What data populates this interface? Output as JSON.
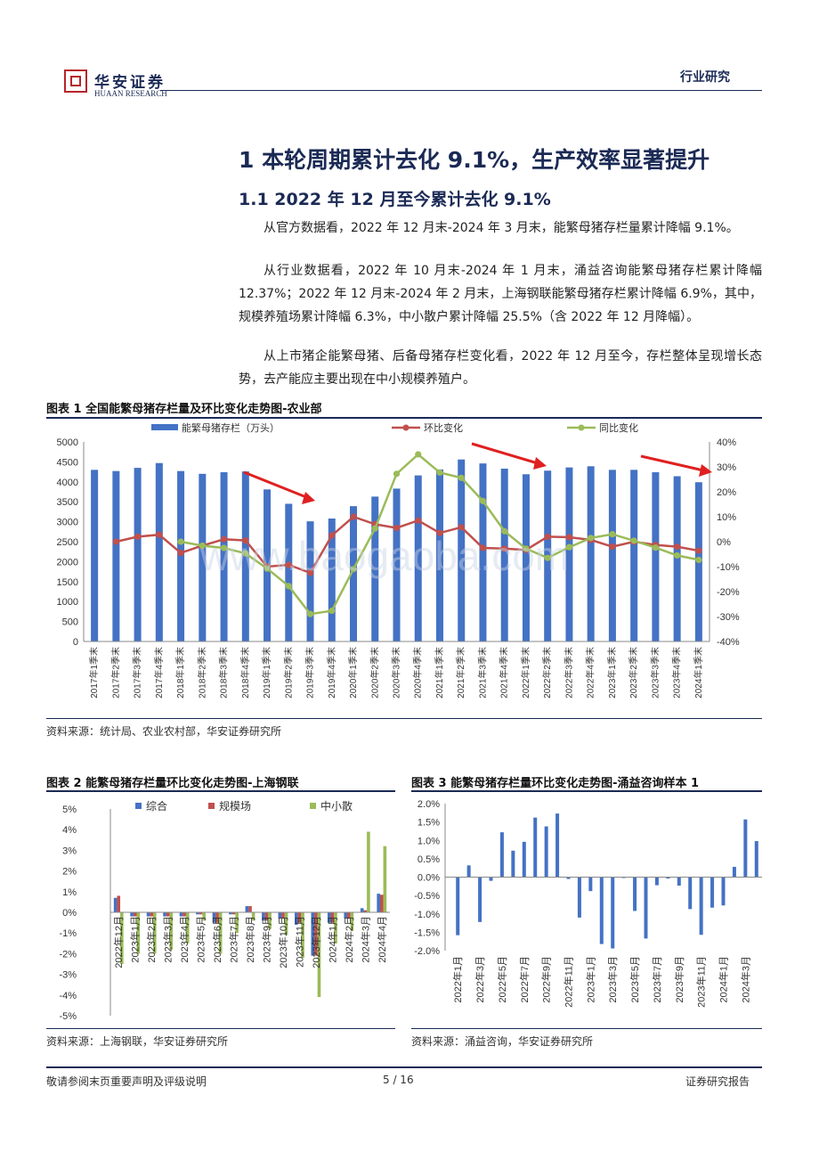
{
  "header": {
    "brand_cn": "华安证券",
    "brand_en": "HUAAN RESEARCH",
    "category": "行业研究"
  },
  "section_title": "1 本轮周期累计去化 9.1%，生产效率显著提升",
  "subsection_title": "1.1 2022 年 12 月至今累计去化 9.1%",
  "paragraphs": [
    "从官方数据看，2022 年 12 月末-2024 年 3 月末，能繁母猪存栏量累计降幅 9.1%。",
    "从行业数据看，2022 年 10 月末-2024 年 1 月末，涌益咨询能繁母猪存栏累计降幅 12.37%；2022 年 12 月末-2024 年 2 月末，上海钢联能繁母猪存栏累计降幅 6.9%，其中，规模养殖场累计降幅 6.3%，中小散户累计降幅 25.5%（含 2022 年 12 月降幅）。",
    "从上市猪企能繁母猪、后备母猪存栏变化看，2022 年 12 月至今，存栏整体呈现增长态势，去产能应主要出现在中小规模养殖户。"
  ],
  "figure1": {
    "title": "图表 1 全国能繁母猪存栏量及环比变化走势图-农业部",
    "source": "资料来源：统计局、农业农村部，华安证券研究所"
  },
  "figure2": {
    "title": "图表 2 能繁母猪存栏量环比变化走势图-上海钢联",
    "source": "资料来源：上海钢联，华安证券研究所"
  },
  "figure3": {
    "title": "图表 3 能繁母猪存栏量环比变化走势图-涌益咨询样本 1",
    "source": "资料来源：涌益咨询，华安证券研究所"
  },
  "watermark": "www.baogaoba.com",
  "footer": {
    "left": "敬请参阅末页重要声明及评级说明",
    "page": "5 / 16",
    "right": "证券研究报告"
  },
  "colors": {
    "navy": "#1b2a55",
    "bar_blue": "#4472c4",
    "mom_red": "#c0504d",
    "yoy_green": "#9bbb59",
    "arrow_red": "#e02020"
  },
  "chart_data": [
    {
      "id": "chart1",
      "type": "bar",
      "categories": [
        "2017年1季末",
        "2017年2季末",
        "2017年3季末",
        "2017年4季末",
        "2018年1季末",
        "2018年2季末",
        "2018年3季末",
        "2018年4季末",
        "2019年1季末",
        "2019年2季末",
        "2019年3季末",
        "2019年4季末",
        "2020年1季末",
        "2020年2季末",
        "2020年3季末",
        "2020年4季末",
        "2021年1季末",
        "2021年2季末",
        "2021年3季末",
        "2021年4季末",
        "2022年1季末",
        "2022年2季末",
        "2022年3季末",
        "2022年4季末",
        "2023年1季末",
        "2023年2季末",
        "2023年3季末",
        "2023年4季末",
        "2024年1季末"
      ],
      "series": [
        {
          "name": "能繁母猪存栏（万头）",
          "kind": "bar",
          "axis": "left",
          "values": [
            4300,
            4270,
            4350,
            4470,
            4270,
            4200,
            4240,
            4260,
            3810,
            3450,
            3010,
            3080,
            3390,
            3630,
            3830,
            4160,
            4310,
            4560,
            4460,
            4330,
            4190,
            4280,
            4360,
            4390,
            4300,
            4300,
            4240,
            4140,
            3990
          ]
        },
        {
          "name": "环比变化",
          "kind": "line",
          "axis": "right",
          "values": [
            null,
            0.0,
            0.02,
            0.028,
            -0.045,
            -0.016,
            0.01,
            0.005,
            -0.1,
            -0.093,
            -0.125,
            0.025,
            0.1,
            0.07,
            0.055,
            0.085,
            0.035,
            0.058,
            -0.025,
            -0.028,
            -0.033,
            0.02,
            0.018,
            0.007,
            -0.02,
            0.0,
            -0.013,
            -0.02,
            -0.036
          ]
        },
        {
          "name": "同比变化",
          "kind": "line",
          "axis": "right",
          "values": [
            null,
            null,
            null,
            null,
            0.0,
            -0.016,
            -0.025,
            -0.047,
            -0.108,
            -0.178,
            -0.29,
            -0.277,
            -0.11,
            0.053,
            0.272,
            0.35,
            0.277,
            0.256,
            0.163,
            0.042,
            -0.028,
            -0.065,
            -0.022,
            0.015,
            0.03,
            0.004,
            -0.024,
            -0.055,
            -0.073
          ]
        }
      ],
      "ylim_left": [
        0,
        5000
      ],
      "yticks_left": [
        "0",
        "500",
        "1000",
        "1500",
        "2000",
        "2500",
        "3000",
        "3500",
        "4000",
        "4500",
        "5000"
      ],
      "ylim_right": [
        -0.4,
        0.4
      ],
      "yticks_right": [
        "-40%",
        "-30%",
        "-20%",
        "-10%",
        "0%",
        "10%",
        "20%",
        "30%",
        "40%"
      ],
      "legend": "top"
    },
    {
      "id": "chart2",
      "type": "bar",
      "categories": [
        "2022年12月",
        "2023年1月",
        "2023年2月",
        "2023年3月",
        "2023年4月",
        "2023年5月",
        "2023年6月",
        "2023年7月",
        "2023年8月",
        "2023年9月",
        "2023年10月",
        "2023年11月",
        "2023年12月",
        "2024年1月",
        "2024年2月",
        "2024年3月",
        "2024年4月"
      ],
      "series": [
        {
          "name": "综合",
          "values": [
            0.7,
            -0.2,
            -0.2,
            -0.2,
            -0.2,
            -0.1,
            -0.5,
            -0.1,
            0.3,
            -0.4,
            -0.3,
            -0.6,
            -2.1,
            -0.5,
            -0.3,
            0.2,
            0.9
          ]
        },
        {
          "name": "规模场",
          "values": [
            0.8,
            -0.2,
            -0.2,
            -0.2,
            -0.2,
            -0.1,
            -0.5,
            -0.1,
            0.3,
            -0.4,
            -0.3,
            -0.5,
            -2.1,
            -0.5,
            -0.3,
            0.1,
            0.85
          ]
        },
        {
          "name": "中小散",
          "values": [
            -2.5,
            -2.0,
            -2.0,
            -1.8,
            -1.5,
            -0.4,
            -2.0,
            -1.0,
            -0.4,
            -0.8,
            -1.1,
            -2.2,
            -4.1,
            -1.5,
            -0.9,
            3.9,
            3.2
          ]
        }
      ],
      "ylim": [
        -5,
        5
      ],
      "yticks": [
        "-5%",
        "-4%",
        "-3%",
        "-2%",
        "-1%",
        "0%",
        "1%",
        "2%",
        "3%",
        "4%",
        "5%"
      ],
      "legend": "top"
    },
    {
      "id": "chart3",
      "type": "bar",
      "categories": [
        "2022年1月",
        "2022年2月",
        "2022年3月",
        "2022年4月",
        "2022年5月",
        "2022年6月",
        "2022年7月",
        "2022年8月",
        "2022年9月",
        "2022年10月",
        "2022年11月",
        "2022年12月",
        "2023年1月",
        "2023年2月",
        "2023年3月",
        "2023年4月",
        "2023年5月",
        "2023年6月",
        "2023年7月",
        "2023年8月",
        "2023年9月",
        "2023年10月",
        "2023年11月",
        "2023年12月",
        "2024年1月",
        "2024年2月",
        "2024年3月",
        "2024年4月"
      ],
      "tick_labels": [
        "2022年1月",
        "2022年3月",
        "2022年5月",
        "2022年7月",
        "2022年9月",
        "2022年11月",
        "2023年1月",
        "2023年3月",
        "2023年5月",
        "2023年7月",
        "2023年9月",
        "2023年11月",
        "2024年1月",
        "2024年3月"
      ],
      "series": [
        {
          "name": "环比变化",
          "values": [
            -1.58,
            0.32,
            -1.22,
            -0.1,
            1.22,
            0.72,
            0.96,
            1.62,
            1.38,
            1.73,
            -0.05,
            -1.1,
            -0.38,
            -1.82,
            -1.94,
            0.0,
            -0.92,
            -1.67,
            -0.22,
            -0.04,
            -0.23,
            -0.87,
            -1.57,
            -0.83,
            -0.77,
            0.28,
            1.57,
            0.98
          ]
        }
      ],
      "ylim": [
        -2.0,
        2.0
      ],
      "yticks": [
        "-2.0%",
        "-1.5%",
        "-1.0%",
        "-0.5%",
        "0.0%",
        "0.5%",
        "1.0%",
        "1.5%",
        "2.0%"
      ]
    }
  ]
}
